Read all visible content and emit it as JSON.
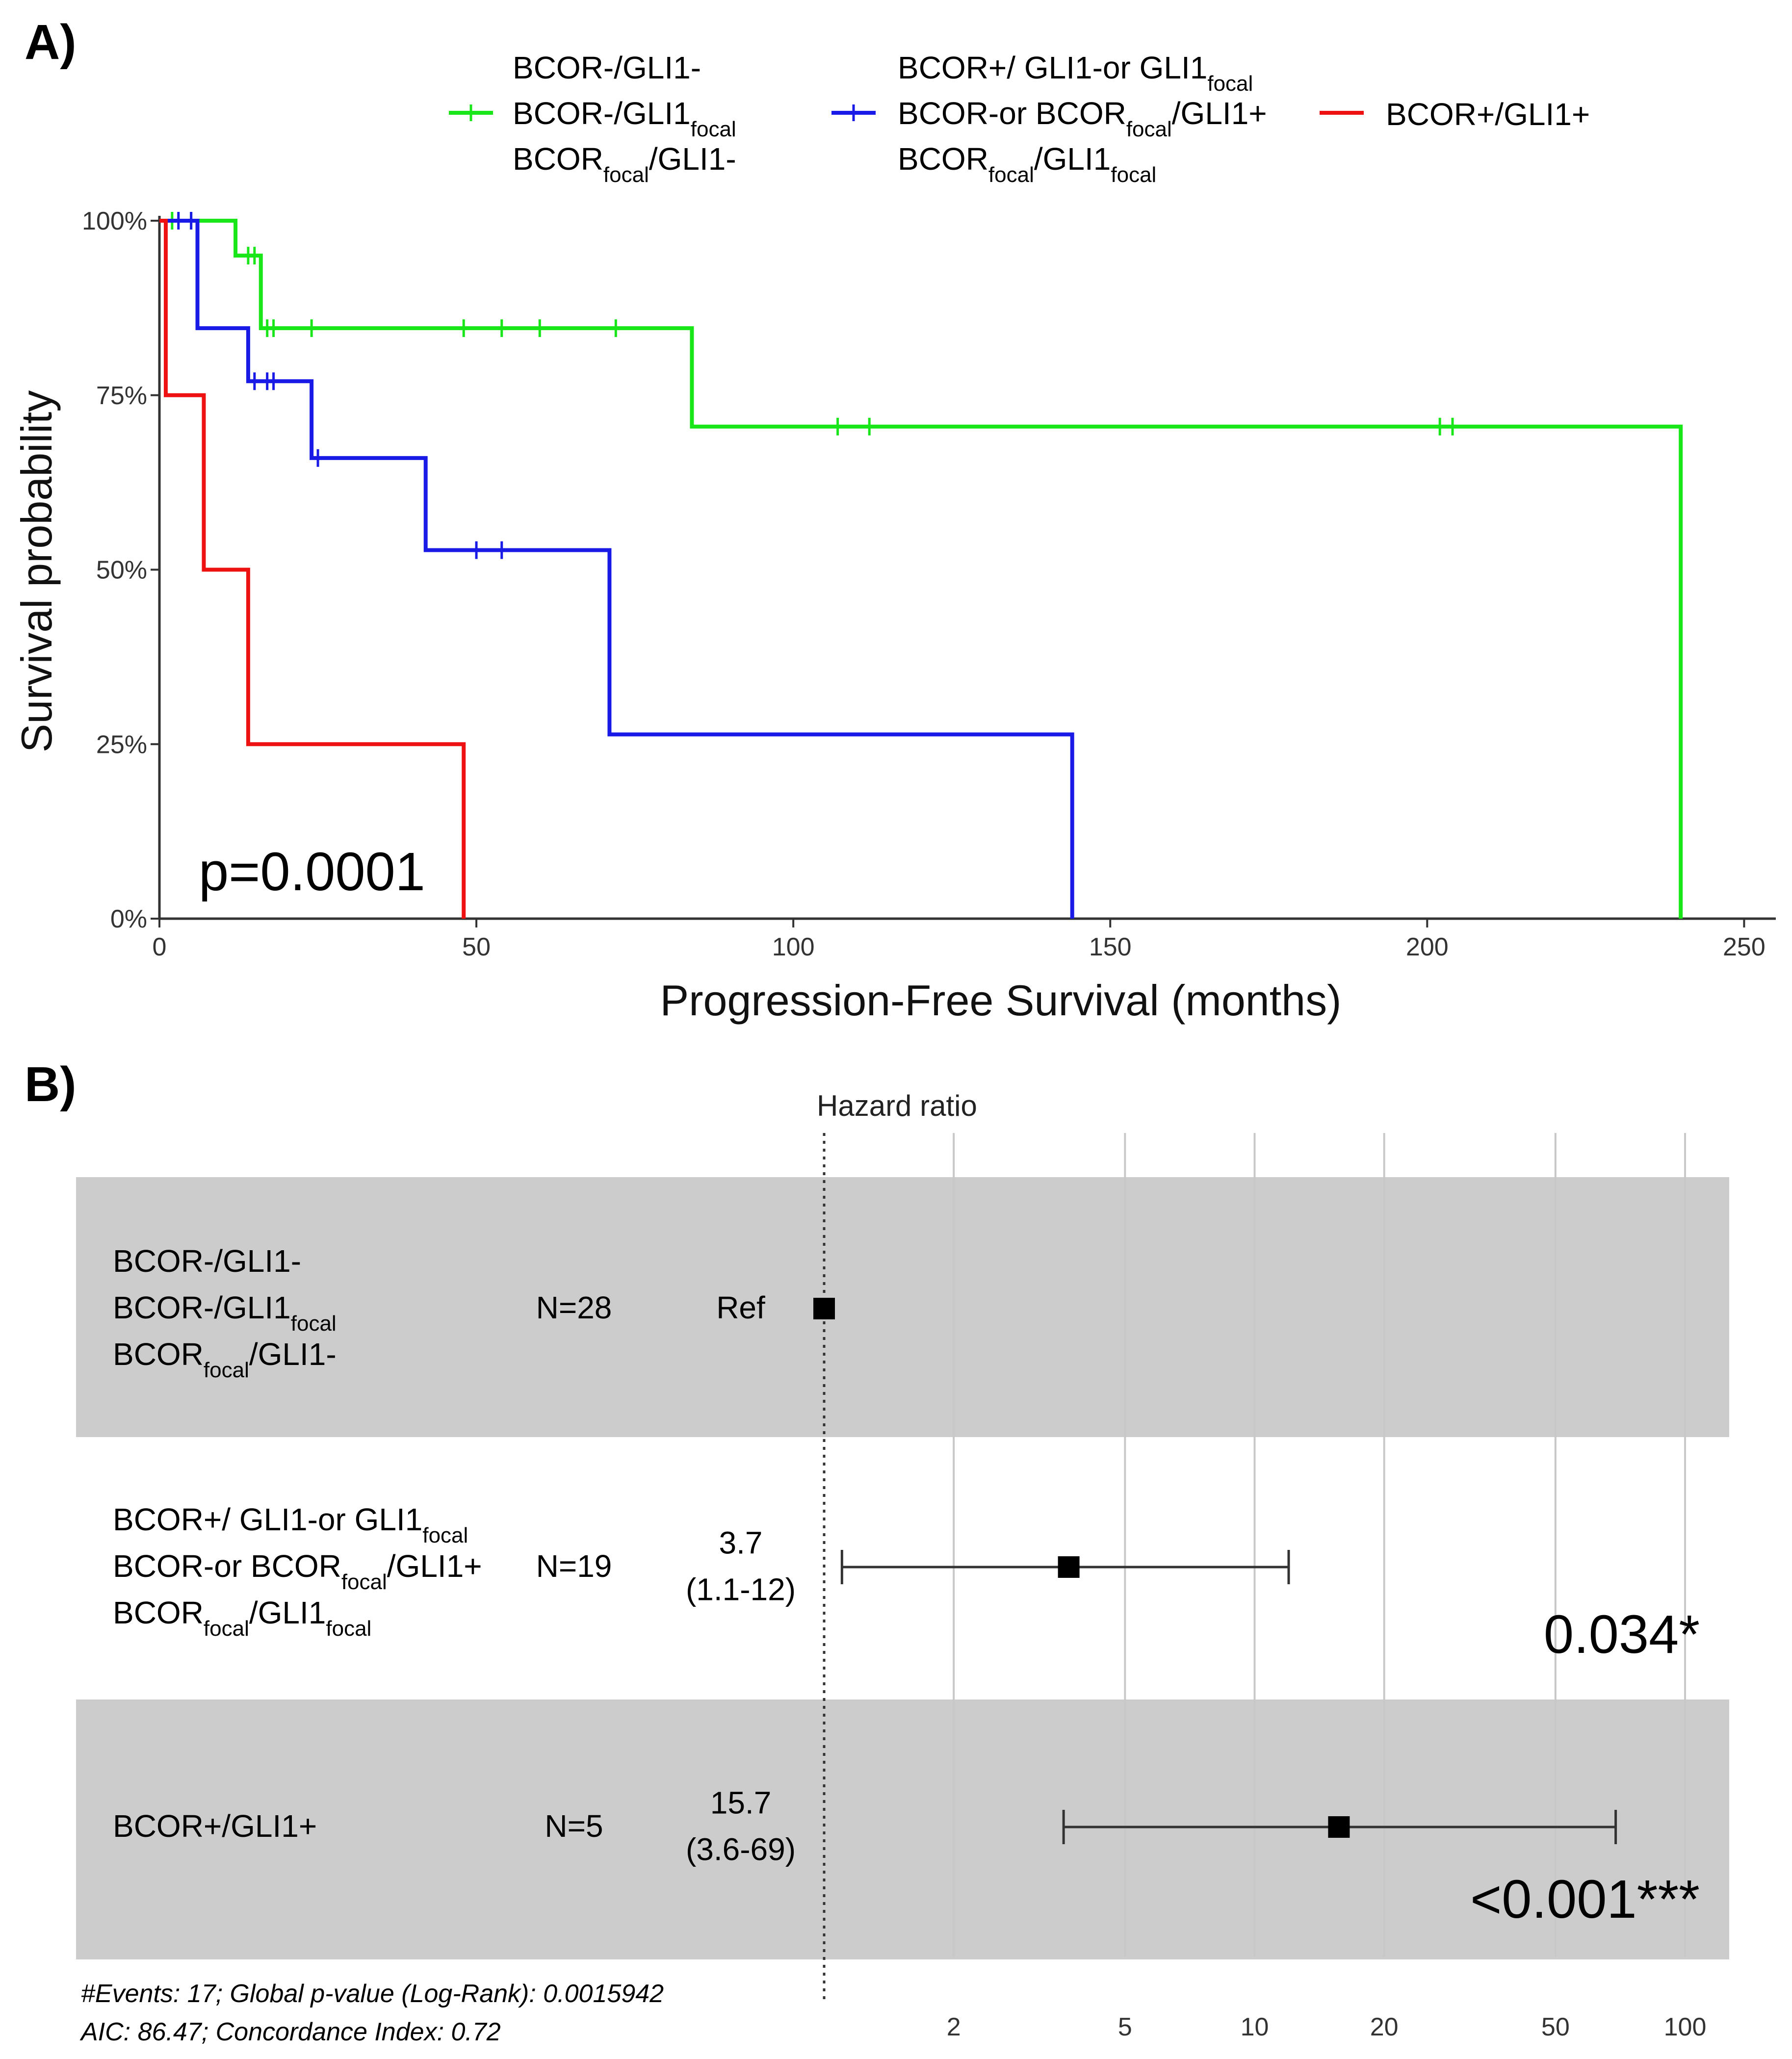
{
  "panels": {
    "a_label": "A)",
    "b_label": "B)"
  },
  "chart_data": [
    {
      "type": "line",
      "xlabel": "Progression-Free Survival (months)",
      "ylabel": "Survival probability",
      "xlim": [
        0,
        255
      ],
      "ylim": [
        0,
        1
      ],
      "x_ticks": [
        0,
        50,
        100,
        150,
        200,
        250
      ],
      "y_ticks": [
        0,
        0.25,
        0.5,
        0.75,
        1.0
      ],
      "y_tick_labels": [
        "0%",
        "25%",
        "50%",
        "75%",
        "100%"
      ],
      "legend_position": "top",
      "annotation": "p=0.0001",
      "series": [
        {
          "legend_lines": [
            [
              {
                "t": "BCOR-/GLI1-"
              }
            ],
            [
              {
                "t": "BCOR-/GLI1"
              },
              {
                "t": "focal",
                "sub": true
              }
            ],
            [
              {
                "t": "BCOR"
              },
              {
                "t": "focal",
                "sub": true
              },
              {
                "t": "/GLI1-"
              }
            ]
          ],
          "color": "#19e619",
          "steps": [
            [
              0,
              1.0
            ],
            [
              12,
              0.95
            ],
            [
              16,
              0.846
            ],
            [
              84,
              0.705
            ],
            [
              240,
              0.0
            ]
          ],
          "end": 240,
          "censor": [
            [
              2,
              1.0
            ],
            [
              5,
              1.0
            ],
            [
              14,
              0.95
            ],
            [
              15,
              0.95
            ],
            [
              17,
              0.846
            ],
            [
              18,
              0.846
            ],
            [
              24,
              0.846
            ],
            [
              48,
              0.846
            ],
            [
              54,
              0.846
            ],
            [
              60,
              0.846
            ],
            [
              72,
              0.846
            ],
            [
              107,
              0.705
            ],
            [
              112,
              0.705
            ],
            [
              202,
              0.705
            ],
            [
              204,
              0.705
            ]
          ]
        },
        {
          "legend_lines": [
            [
              {
                "t": "BCOR+/ GLI1-or GLI1"
              },
              {
                "t": "focal",
                "sub": true
              }
            ],
            [
              {
                "t": "BCOR-or BCOR"
              },
              {
                "t": "focal",
                "sub": true
              },
              {
                "t": "/GLI1+"
              }
            ],
            [
              {
                "t": "BCOR"
              },
              {
                "t": "focal",
                "sub": true
              },
              {
                "t": "/GLI1"
              },
              {
                "t": "focal",
                "sub": true
              }
            ]
          ],
          "color": "#1a1ae6",
          "steps": [
            [
              0,
              1.0
            ],
            [
              6,
              0.846
            ],
            [
              14,
              0.77
            ],
            [
              24,
              0.66
            ],
            [
              42,
              0.528
            ],
            [
              71,
              0.264
            ],
            [
              144,
              0.0
            ]
          ],
          "end": 144,
          "censor": [
            [
              3,
              1.0
            ],
            [
              5,
              1.0
            ],
            [
              15,
              0.77
            ],
            [
              17,
              0.77
            ],
            [
              18,
              0.77
            ],
            [
              25,
              0.66
            ],
            [
              50,
              0.528
            ],
            [
              54,
              0.528
            ]
          ]
        },
        {
          "legend_lines": [
            [
              {
                "t": "BCOR+/GLI1+"
              }
            ]
          ],
          "color": "#ee1111",
          "steps": [
            [
              0,
              1.0
            ],
            [
              1,
              0.75
            ],
            [
              7,
              0.5
            ],
            [
              14,
              0.25
            ],
            [
              48,
              0.0
            ]
          ],
          "end": 48,
          "censor": []
        }
      ]
    },
    {
      "type": "forest",
      "title": "Hazard ratio",
      "x_scale": "log",
      "xlim": [
        0.8,
        120
      ],
      "x_ticks": [
        2,
        5,
        10,
        20,
        50,
        100
      ],
      "rows": [
        {
          "label_lines": [
            [
              {
                "t": "BCOR-/GLI1-"
              }
            ],
            [
              {
                "t": "BCOR-/GLI1"
              },
              {
                "t": "focal",
                "sub": true
              }
            ],
            [
              {
                "t": "BCOR"
              },
              {
                "t": "focal",
                "sub": true
              },
              {
                "t": "/GLI1-"
              }
            ]
          ],
          "n": "N=28",
          "estimate_lines": [
            "Ref"
          ],
          "hr": 1.0,
          "lo": null,
          "hi": null,
          "p": "",
          "shaded": true
        },
        {
          "label_lines": [
            [
              {
                "t": "BCOR+/ GLI1-or GLI1"
              },
              {
                "t": "focal",
                "sub": true
              }
            ],
            [
              {
                "t": "BCOR-or BCOR"
              },
              {
                "t": "focal",
                "sub": true
              },
              {
                "t": "/GLI1+"
              }
            ],
            [
              {
                "t": "BCOR"
              },
              {
                "t": "focal",
                "sub": true
              },
              {
                "t": "/GLI1"
              },
              {
                "t": "focal",
                "sub": true
              }
            ]
          ],
          "n": "N=19",
          "estimate_lines": [
            "3.7",
            "(1.1-12)"
          ],
          "hr": 3.7,
          "lo": 1.1,
          "hi": 12,
          "p": "0.034*",
          "shaded": false
        },
        {
          "label_lines": [
            [
              {
                "t": "BCOR+/GLI1+"
              }
            ]
          ],
          "n": "N=5",
          "estimate_lines": [
            "15.7",
            "(3.6-69)"
          ],
          "hr": 15.7,
          "lo": 3.6,
          "hi": 69,
          "p": "<0.001***",
          "shaded": true
        }
      ],
      "footnote_lines": [
        "#Events: 17; Global p-value (Log-Rank): 0.0015942",
        "AIC: 86.47; Concordance Index: 0.72"
      ]
    }
  ]
}
